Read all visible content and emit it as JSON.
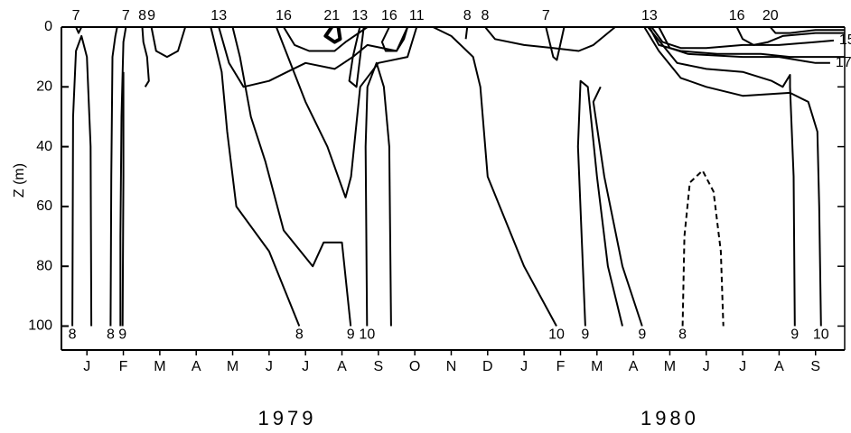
{
  "chart_data": {
    "type": "contour",
    "ylabel": "Z (m)",
    "ylim": [
      0,
      108
    ],
    "yticks": [
      0,
      20,
      40,
      60,
      80,
      100
    ],
    "yinverted": true,
    "xlim": [
      -0.2,
      21.3
    ],
    "xticks": [
      {
        "value": 0.5,
        "label": "J"
      },
      {
        "value": 1.5,
        "label": "F"
      },
      {
        "value": 2.5,
        "label": "M"
      },
      {
        "value": 3.5,
        "label": "A"
      },
      {
        "value": 4.5,
        "label": "M"
      },
      {
        "value": 5.5,
        "label": "J"
      },
      {
        "value": 6.5,
        "label": "J"
      },
      {
        "value": 7.5,
        "label": "A"
      },
      {
        "value": 8.5,
        "label": "S"
      },
      {
        "value": 9.5,
        "label": "O"
      },
      {
        "value": 10.5,
        "label": "N"
      },
      {
        "value": 11.5,
        "label": "D"
      },
      {
        "value": 12.5,
        "label": "J"
      },
      {
        "value": 13.5,
        "label": "F"
      },
      {
        "value": 14.5,
        "label": "M"
      },
      {
        "value": 15.5,
        "label": "A"
      },
      {
        "value": 16.5,
        "label": "M"
      },
      {
        "value": 17.5,
        "label": "J"
      },
      {
        "value": 18.5,
        "label": "J"
      },
      {
        "value": 19.5,
        "label": "A"
      },
      {
        "value": 20.5,
        "label": "S"
      }
    ],
    "years": [
      "1979",
      "1980"
    ],
    "color": "#000000",
    "contours": [
      {
        "level": 8,
        "dashed": false,
        "x": [
          0.1,
          0.12,
          0.2,
          0.35,
          0.5,
          0.6,
          0.62
        ],
        "z": [
          100,
          30,
          8,
          3,
          10,
          40,
          100
        ]
      },
      {
        "level": 7,
        "dashed": false,
        "x": [
          0.2,
          0.27,
          0.35
        ],
        "z": [
          0,
          2,
          0
        ]
      },
      {
        "level": 8,
        "dashed": false,
        "x": [
          1.15,
          1.17,
          1.2,
          1.28,
          1.33
        ],
        "z": [
          100,
          50,
          10,
          3,
          0
        ]
      },
      {
        "level": 7,
        "dashed": false,
        "x": [
          1.57,
          1.5,
          1.45,
          1.42,
          1.42
        ],
        "z": [
          0,
          5,
          30,
          70,
          100
        ]
      },
      {
        "level": 9,
        "dashed": false,
        "x": [
          1.48,
          1.5,
          1.5
        ],
        "z": [
          100,
          50,
          15
        ]
      },
      {
        "level": 8,
        "dashed": false,
        "x": [
          2.02,
          2.05,
          2.15,
          2.2,
          2.1
        ],
        "z": [
          0,
          5,
          10,
          18,
          20
        ]
      },
      {
        "level": 9,
        "dashed": false,
        "x": [
          2.27,
          2.4,
          2.7,
          3.0,
          3.2
        ],
        "z": [
          0,
          8,
          10,
          8,
          0
        ]
      },
      {
        "level": 8,
        "dashed": false,
        "x": [
          6.33,
          5.5,
          4.6,
          4.35,
          4.2,
          4.0,
          3.9
        ],
        "z": [
          100,
          75,
          60,
          35,
          15,
          5,
          0
        ]
      },
      {
        "level": 9,
        "dashed": false,
        "x": [
          7.74,
          7.5,
          7.0,
          6.7,
          5.9,
          5.4,
          5.0,
          4.7,
          4.5
        ],
        "z": [
          100,
          72,
          72,
          80,
          68,
          45,
          30,
          10,
          0
        ]
      },
      {
        "level": 10,
        "dashed": false,
        "x": [
          8.19,
          8.15,
          8.2,
          8.45,
          8.65,
          8.8,
          8.85
        ],
        "z": [
          100,
          40,
          20,
          12,
          20,
          40,
          100
        ]
      },
      {
        "level": 11,
        "dashed": false,
        "x": [
          9.55,
          9.3,
          8.5,
          8.0,
          7.75,
          7.6,
          7.1,
          6.5,
          5.7
        ],
        "z": [
          0,
          10,
          12,
          20,
          50,
          57,
          40,
          25,
          0
        ]
      },
      {
        "level": 13,
        "dashed": false,
        "x": [
          4.12,
          4.4,
          4.8,
          5.5,
          6.0,
          6.5,
          7.3,
          7.8,
          8.2,
          9.0,
          9.3
        ],
        "z": [
          0,
          12,
          20,
          18,
          15,
          12,
          14,
          10,
          6,
          8,
          0
        ]
      },
      {
        "level": 16,
        "dashed": false,
        "x": [
          5.9,
          6.2,
          6.6,
          7.3,
          7.6,
          8.2
        ],
        "z": [
          0,
          6,
          8,
          8,
          5,
          0
        ]
      },
      {
        "level": 21,
        "dashed": false,
        "x": [
          7.22,
          7.05,
          7.3,
          7.45,
          7.4
        ],
        "z": [
          0,
          3,
          5,
          4,
          0
        ]
      },
      {
        "level": 13,
        "dashed": false,
        "x": [
          7.99,
          7.8,
          7.7,
          7.9,
          8.1
        ],
        "z": [
          0,
          10,
          18,
          20,
          0
        ]
      },
      {
        "level": 16,
        "dashed": false,
        "x": [
          8.8,
          8.6,
          8.7,
          9.0,
          9.2,
          9.3
        ],
        "z": [
          0,
          5,
          8,
          8,
          4,
          0
        ]
      },
      {
        "level": 10,
        "dashed": false,
        "x": [
          13.39,
          12.5,
          11.5,
          11.3,
          11.1,
          10.5,
          10.0
        ],
        "z": [
          100,
          80,
          50,
          20,
          10,
          3,
          0
        ]
      },
      {
        "level": 8,
        "dashed": false,
        "x": [
          10.94,
          10.9
        ],
        "z": [
          0,
          4
        ]
      },
      {
        "level": 8,
        "dashed": false,
        "x": [
          11.43,
          11.7,
          12.5,
          13.3,
          14.0,
          14.4,
          15.0
        ],
        "z": [
          0,
          4,
          6,
          7,
          8,
          6,
          0
        ]
      },
      {
        "level": 7,
        "dashed": false,
        "x": [
          13.1,
          13.3,
          13.4,
          13.6
        ],
        "z": [
          0,
          10,
          11,
          0
        ]
      },
      {
        "level": 9,
        "dashed": false,
        "x": [
          14.18,
          13.98,
          14.05,
          14.25,
          14.5,
          14.8,
          15.2
        ],
        "z": [
          100,
          40,
          18,
          20,
          50,
          80,
          100
        ]
      },
      {
        "level": 9,
        "dashed": false,
        "x": [
          15.74,
          15.2,
          14.7,
          14.4,
          14.6
        ],
        "z": [
          100,
          80,
          50,
          25,
          20
        ]
      },
      {
        "level": 13,
        "dashed": false,
        "x": [
          15.94,
          16.2,
          16.8,
          17.8,
          19.0,
          19.8,
          20.6,
          21.3
        ],
        "z": [
          0,
          6,
          8,
          9,
          9,
          10,
          10,
          10
        ]
      },
      {
        "level": 16,
        "dashed": false,
        "x": [
          18.34,
          18.5,
          18.8,
          19.2,
          19.6,
          20.5,
          21.3
        ],
        "z": [
          0,
          4,
          6,
          5,
          3,
          2,
          2
        ]
      },
      {
        "level": 20,
        "dashed": false,
        "x": [
          19.26,
          19.4,
          19.8,
          20.5,
          21.3
        ],
        "z": [
          0,
          2,
          2,
          1,
          1
        ]
      },
      {
        "level": 15,
        "dashed": false,
        "x": [
          21.0,
          20.5,
          19.5,
          18.5,
          17.5,
          16.8,
          16.3,
          16.0
        ],
        "z": [
          4.5,
          5,
          6,
          6,
          7,
          7,
          5,
          0
        ]
      },
      {
        "level": 17,
        "dashed": false,
        "x": [
          20.9,
          20.5,
          20.0,
          19.5,
          18.5,
          17.0,
          16.5,
          16.2
        ],
        "z": [
          12,
          12,
          11,
          10,
          10,
          9,
          7,
          0
        ]
      },
      {
        "level": 10,
        "dashed": false,
        "x": [
          20.65,
          20.6,
          20.55,
          20.3,
          19.8,
          18.5,
          17.5,
          16.8,
          16.2,
          15.8
        ],
        "z": [
          100,
          60,
          35,
          25,
          22,
          23,
          20,
          17,
          8,
          0
        ]
      },
      {
        "level": 9,
        "dashed": false,
        "x": [
          19.93,
          19.9,
          19.8,
          19.8,
          19.6,
          19.3,
          18.5,
          17.5,
          16.7,
          16.3,
          15.9
        ],
        "z": [
          100,
          50,
          20,
          16,
          20,
          18,
          15,
          14,
          12,
          6,
          0
        ]
      },
      {
        "level": 8,
        "dashed": true,
        "x": [
          16.85,
          16.9,
          17.05,
          17.4,
          17.7,
          17.9,
          17.97
        ],
        "z": [
          100,
          70,
          52,
          48,
          55,
          75,
          100
        ]
      }
    ]
  }
}
